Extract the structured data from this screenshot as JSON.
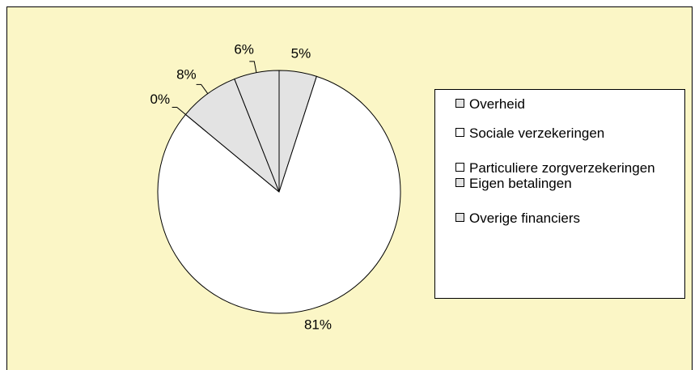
{
  "chart_data": {
    "type": "pie",
    "categories": [
      "Overheid",
      "Sociale verzekeringen",
      "Particuliere zorgverzekeringen",
      "Eigen betalingen",
      "Overige financiers"
    ],
    "values": [
      5,
      81,
      0,
      8,
      6
    ],
    "value_labels": [
      "5%",
      "81%",
      "0%",
      "8%",
      "6%"
    ],
    "colors": [
      "#e3e3e3",
      "#ffffff",
      "#ffffff",
      "#e3e3e3",
      "#e3e3e3"
    ],
    "legend": "right"
  }
}
